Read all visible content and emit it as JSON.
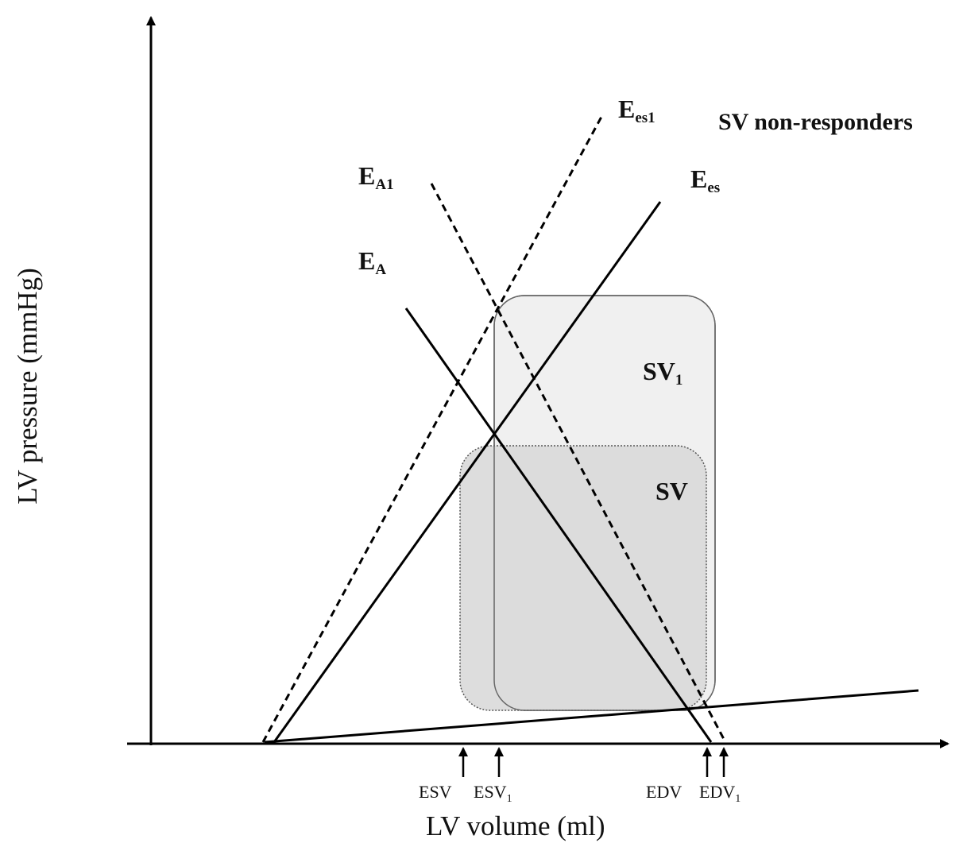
{
  "axes": {
    "y_label": "LV pressure (mmHg)",
    "x_label": "LV volume (ml)"
  },
  "title": "SV non-responders",
  "lines": {
    "ees1": {
      "main": "E",
      "sub": "es1"
    },
    "ees": {
      "main": "E",
      "sub": "es"
    },
    "ea1": {
      "main": "E",
      "sub": "A1"
    },
    "ea": {
      "main": "E",
      "sub": "A"
    }
  },
  "regions": {
    "sv1": {
      "main": "SV",
      "sub": "1"
    },
    "sv": {
      "main": "SV"
    }
  },
  "markers": {
    "esv": {
      "main": "ESV"
    },
    "esv1": {
      "main": "ESV",
      "sub": "1"
    },
    "edv": {
      "main": "EDV"
    },
    "edv1": {
      "main": "EDV",
      "sub": "1"
    }
  },
  "colors": {
    "sv1_fill": "#f0f0f0",
    "sv_fill": "#d9d9d9",
    "line": "#000000"
  }
}
